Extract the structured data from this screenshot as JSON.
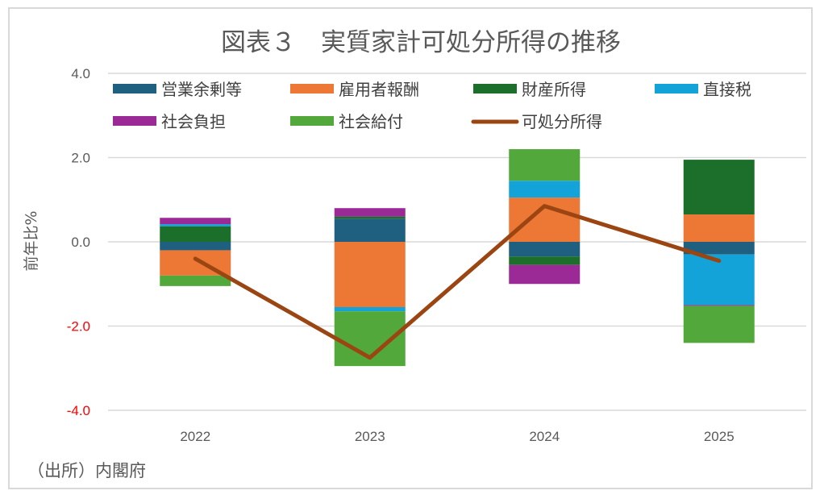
{
  "chart_data": {
    "type": "bar",
    "stacked": true,
    "title": "図表３　実質家計可処分所得の推移",
    "ylabel": "前年比%",
    "xlabel": "",
    "ylim": [
      -4.0,
      4.0
    ],
    "yticks": [
      "4.0",
      "2.0",
      "0.0",
      "-2.0",
      "-4.0"
    ],
    "negative_tick_color": "#ff0000",
    "grid": true,
    "legend_position": "top",
    "categories": [
      "2022",
      "2023",
      "2024",
      "2025"
    ],
    "series": [
      {
        "name": "営業余剰等",
        "color": "#1f5f7f",
        "values": [
          -0.2,
          0.55,
          -0.35,
          -0.3
        ]
      },
      {
        "name": "雇用者報酬",
        "color": "#ed7734",
        "values": [
          -0.6,
          -1.55,
          1.05,
          0.65
        ]
      },
      {
        "name": "財産所得",
        "color": "#1b6f2a",
        "values": [
          0.37,
          0.05,
          -0.2,
          1.3
        ]
      },
      {
        "name": "直接税",
        "color": "#14a3d8",
        "values": [
          0.05,
          -0.1,
          0.4,
          -1.2
        ]
      },
      {
        "name": "社会負担",
        "color": "#9b2a96",
        "values": [
          0.15,
          0.2,
          -0.45,
          -0.02
        ]
      },
      {
        "name": "社会給付",
        "color": "#52a83a",
        "values": [
          -0.25,
          -1.3,
          0.75,
          -0.88
        ]
      }
    ],
    "line_series": {
      "name": "可処分所得",
      "color": "#9b4512",
      "values": [
        -0.4,
        -2.75,
        0.85,
        -0.45
      ]
    },
    "source": "（出所）内閣府"
  }
}
